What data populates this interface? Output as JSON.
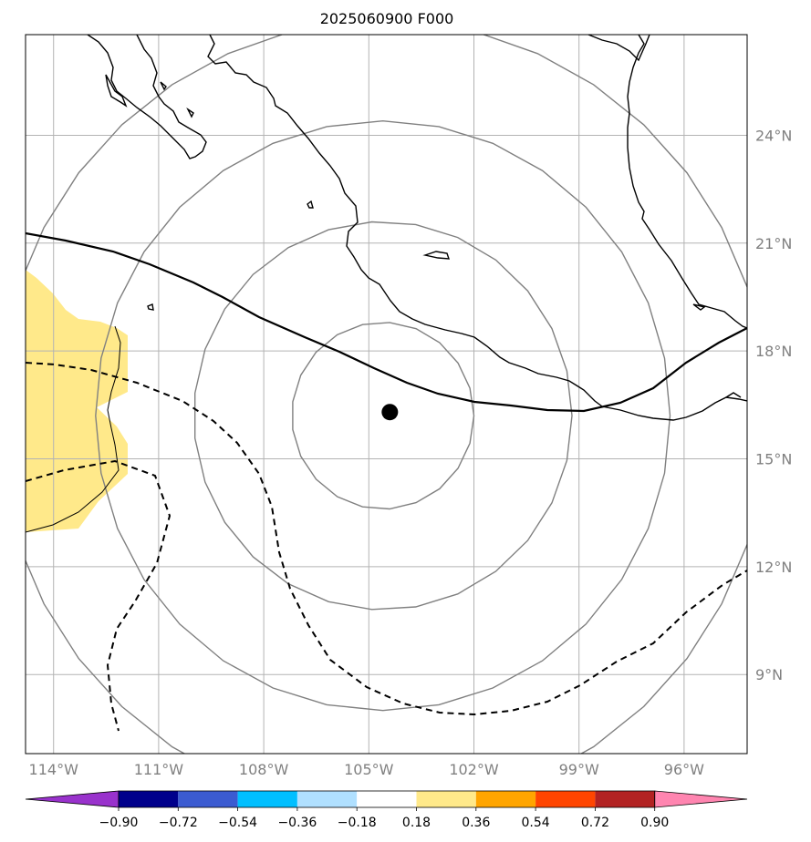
{
  "title": "2025060900 F000",
  "map": {
    "lon_range": [
      -114.8,
      -94.2
    ],
    "lat_range": [
      6.8,
      26.8
    ],
    "lon_ticks": [
      {
        "value": -114,
        "label": "114°W"
      },
      {
        "value": -111,
        "label": "111°W"
      },
      {
        "value": -108,
        "label": "108°W"
      },
      {
        "value": -105,
        "label": "105°W"
      },
      {
        "value": -102,
        "label": "102°W"
      },
      {
        "value": -99,
        "label": "99°W"
      },
      {
        "value": -96,
        "label": "96°W"
      }
    ],
    "lat_ticks": [
      {
        "value": 24,
        "label": "24°N"
      },
      {
        "value": 21,
        "label": "21°N"
      },
      {
        "value": 18,
        "label": "18°N"
      },
      {
        "value": 15,
        "label": "15°N"
      },
      {
        "value": 12,
        "label": "12°N"
      },
      {
        "value": 9,
        "label": "9°N"
      }
    ],
    "center_marker": {
      "lon": -104.4,
      "lat": 16.3
    },
    "range_rings_deg": [
      2.6,
      5.4,
      8.2,
      11.0
    ],
    "gridline_color": "#b3b3b3",
    "ring_color": "#808080",
    "coast_color": "#000000"
  },
  "colorbar": {
    "labels": [
      "−0.90",
      "−0.72",
      "−0.54",
      "−0.36",
      "−0.18",
      "0.18",
      "0.36",
      "0.54",
      "0.72",
      "0.90"
    ],
    "colors": [
      "#9932cc",
      "#00008b",
      "#3b5bd1",
      "#00bfff",
      "#b0e0ff",
      "#ffffff",
      "#ffe98a",
      "#ffa500",
      "#ff4500",
      "#b22222",
      "#ff85b0"
    ]
  },
  "shading": {
    "color": "#ffe98a",
    "value_band": "0.18–0.36"
  }
}
